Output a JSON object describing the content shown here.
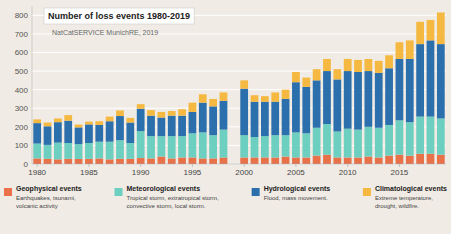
{
  "chart_data": {
    "type": "bar",
    "stacked": true,
    "grid": true,
    "title": "Number of loss events 1980-2019",
    "subtitle": "NatCatSERVICE MunichRE, 2019",
    "categories": [
      "1980",
      null,
      null,
      null,
      null,
      "1985",
      null,
      null,
      null,
      null,
      "1990",
      null,
      null,
      null,
      null,
      "1995",
      null,
      null,
      null,
      null,
      "2000",
      null,
      null,
      null,
      null,
      "2005",
      null,
      null,
      null,
      null,
      "2010",
      null,
      null,
      null,
      null,
      "2015",
      null,
      null,
      null,
      null
    ],
    "ylim": [
      0,
      850
    ],
    "yticks": [
      0,
      100,
      200,
      300,
      400,
      500,
      600,
      700,
      800
    ],
    "series": [
      {
        "name": "Geophysical events",
        "description": "Earthquakes, tsunami,\nvolcanic activity",
        "color": "#e8714a",
        "values": [
          30,
          28,
          25,
          28,
          27,
          28,
          30,
          25,
          28,
          28,
          32,
          30,
          40,
          30,
          35,
          35,
          30,
          30,
          35,
          null,
          35,
          35,
          35,
          35,
          40,
          35,
          35,
          45,
          50,
          35,
          35,
          35,
          40,
          35,
          45,
          50,
          45,
          55,
          55,
          50
        ]
      },
      {
        "name": "Meteorological events",
        "description": "Tropical storm, extratropical storm,\nconvective storm, local storm.",
        "color": "#6dcfbf",
        "values": [
          80,
          75,
          90,
          85,
          80,
          85,
          90,
          95,
          100,
          85,
          145,
          120,
          110,
          120,
          115,
          130,
          140,
          125,
          150,
          null,
          120,
          110,
          115,
          120,
          115,
          135,
          130,
          150,
          165,
          140,
          155,
          150,
          160,
          160,
          165,
          185,
          180,
          200,
          200,
          195
        ]
      },
      {
        "name": "Hydrological events",
        "description": "Flood, mass movement.",
        "color": "#2c6fad",
        "values": [
          110,
          100,
          110,
          120,
          90,
          100,
          90,
          110,
          130,
          110,
          120,
          110,
          100,
          110,
          110,
          115,
          160,
          155,
          155,
          null,
          250,
          190,
          185,
          180,
          195,
          270,
          250,
          255,
          285,
          280,
          310,
          310,
          300,
          295,
          305,
          330,
          340,
          390,
          410,
          400
        ]
      },
      {
        "name": "Climatological events",
        "description": "Extreme temperature,\ndrought, wildfire.",
        "color": "#f5b942",
        "values": [
          20,
          20,
          20,
          30,
          15,
          15,
          20,
          25,
          30,
          25,
          25,
          30,
          30,
          25,
          35,
          50,
          45,
          40,
          45,
          null,
          45,
          35,
          30,
          50,
          50,
          55,
          50,
          60,
          65,
          55,
          65,
          65,
          65,
          65,
          70,
          90,
          100,
          120,
          110,
          170
        ]
      }
    ]
  }
}
